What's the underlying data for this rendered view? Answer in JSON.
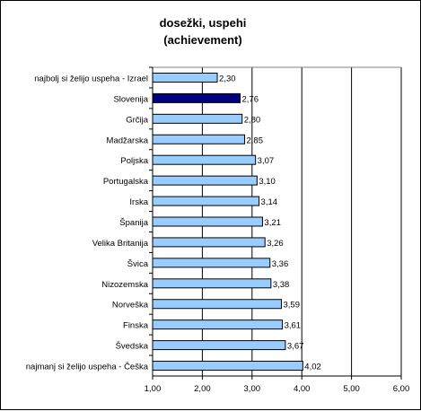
{
  "chart_data": {
    "type": "bar",
    "orientation": "horizontal",
    "title_lines": [
      "dosežki, uspehi",
      "(achievement)"
    ],
    "categories": [
      "najbolj si želijo uspeha - Izrael",
      "Slovenija",
      "Grčija",
      "Madžarska",
      "Poljska",
      "Portugalska",
      "Irska",
      "Španija",
      "Velika Britanija",
      "Švica",
      "Nizozemska",
      "Norveška",
      "Finska",
      "Švedska",
      "najmanj si želijo uspeha - Češka"
    ],
    "values": [
      2.3,
      2.76,
      2.8,
      2.85,
      3.07,
      3.1,
      3.14,
      3.21,
      3.26,
      3.36,
      3.38,
      3.59,
      3.61,
      3.67,
      4.02
    ],
    "value_labels": [
      "2,30",
      "2,76",
      "2,80",
      "2,85",
      "3,07",
      "3,10",
      "3,14",
      "3,21",
      "3,26",
      "3,36",
      "3,38",
      "3,59",
      "3,61",
      "3,67",
      "4,02"
    ],
    "highlight_category": "Slovenija",
    "xlim": [
      1.0,
      6.0
    ],
    "xticks": [
      1,
      2,
      3,
      4,
      5,
      6
    ],
    "xtick_labels": [
      "1,00",
      "2,00",
      "3,00",
      "4,00",
      "5,00",
      "6,00"
    ],
    "vertical_grid": true,
    "legend": "none",
    "colors": {
      "bar": "#99ccff",
      "highlight_bar": "#000080",
      "bar_stroke": "#000000",
      "grid": "#000000",
      "plot_border": "#808080"
    }
  }
}
